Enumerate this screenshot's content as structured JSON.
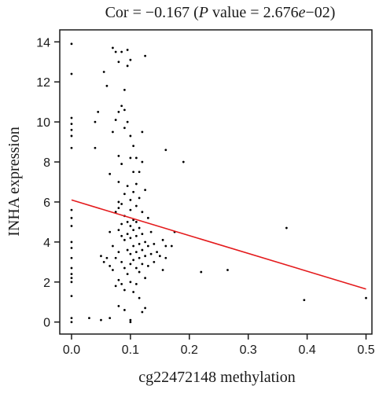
{
  "chart_data": {
    "type": "scatter",
    "title_parts": {
      "prefix": "Cor = −0.167 (",
      "italic1": "P",
      "middle": " value = 2.676",
      "italic2": "e",
      "suffix": "−02)"
    },
    "xlabel": "cg22472148 methylation",
    "ylabel": "INHA expression",
    "xlim": [
      -0.02,
      0.51
    ],
    "ylim": [
      -0.6,
      14.6
    ],
    "xticks": [
      0.0,
      0.1,
      0.2,
      0.3,
      0.4,
      0.5
    ],
    "xtick_labels": [
      "0.0",
      "0.1",
      "0.2",
      "0.3",
      "0.4",
      "0.5"
    ],
    "yticks": [
      0,
      2,
      4,
      6,
      8,
      10,
      12,
      14
    ],
    "ytick_labels": [
      "0",
      "2",
      "4",
      "6",
      "8",
      "10",
      "12",
      "14"
    ],
    "grid": false,
    "point_color": "#000000",
    "line_color": "#e41a1c",
    "regression_line": {
      "x": [
        0.0,
        0.5
      ],
      "y": [
        6.1,
        1.65
      ]
    },
    "points": [
      [
        0.0,
        13.9
      ],
      [
        0.0,
        12.4
      ],
      [
        0.0,
        10.2
      ],
      [
        0.0,
        9.9
      ],
      [
        0.0,
        9.6
      ],
      [
        0.0,
        9.3
      ],
      [
        0.0,
        8.7
      ],
      [
        0.0,
        5.6
      ],
      [
        0.0,
        5.2
      ],
      [
        0.0,
        4.8
      ],
      [
        0.0,
        4.0
      ],
      [
        0.0,
        3.7
      ],
      [
        0.0,
        3.2
      ],
      [
        0.0,
        2.7
      ],
      [
        0.0,
        2.4
      ],
      [
        0.0,
        2.2
      ],
      [
        0.0,
        2.0
      ],
      [
        0.0,
        1.3
      ],
      [
        0.0,
        0.2
      ],
      [
        0.0,
        0.0
      ],
      [
        0.03,
        0.2
      ],
      [
        0.04,
        8.7
      ],
      [
        0.04,
        10.0
      ],
      [
        0.045,
        10.5
      ],
      [
        0.05,
        0.1
      ],
      [
        0.05,
        3.3
      ],
      [
        0.055,
        12.5
      ],
      [
        0.055,
        3.0
      ],
      [
        0.06,
        11.8
      ],
      [
        0.06,
        3.2
      ],
      [
        0.065,
        7.4
      ],
      [
        0.065,
        4.5
      ],
      [
        0.065,
        2.8
      ],
      [
        0.065,
        0.2
      ],
      [
        0.07,
        13.7
      ],
      [
        0.07,
        9.5
      ],
      [
        0.07,
        3.8
      ],
      [
        0.07,
        2.6
      ],
      [
        0.075,
        13.5
      ],
      [
        0.075,
        10.1
      ],
      [
        0.075,
        5.5
      ],
      [
        0.075,
        3.2
      ],
      [
        0.075,
        1.8
      ],
      [
        0.08,
        13.0
      ],
      [
        0.08,
        10.5
      ],
      [
        0.08,
        8.3
      ],
      [
        0.08,
        7.0
      ],
      [
        0.08,
        6.0
      ],
      [
        0.08,
        5.7
      ],
      [
        0.08,
        4.6
      ],
      [
        0.08,
        3.5
      ],
      [
        0.08,
        2.1
      ],
      [
        0.08,
        0.8
      ],
      [
        0.085,
        13.5
      ],
      [
        0.085,
        10.8
      ],
      [
        0.085,
        7.9
      ],
      [
        0.085,
        5.9
      ],
      [
        0.085,
        4.9
      ],
      [
        0.085,
        4.3
      ],
      [
        0.085,
        3.0
      ],
      [
        0.085,
        1.9
      ],
      [
        0.09,
        11.6
      ],
      [
        0.09,
        10.6
      ],
      [
        0.09,
        9.7
      ],
      [
        0.09,
        6.4
      ],
      [
        0.09,
        5.3
      ],
      [
        0.09,
        4.1
      ],
      [
        0.09,
        2.7
      ],
      [
        0.09,
        1.6
      ],
      [
        0.09,
        0.6
      ],
      [
        0.095,
        13.6
      ],
      [
        0.095,
        12.8
      ],
      [
        0.095,
        10.0
      ],
      [
        0.095,
        6.8
      ],
      [
        0.095,
        5.0
      ],
      [
        0.095,
        4.4
      ],
      [
        0.095,
        3.6
      ],
      [
        0.095,
        2.4
      ],
      [
        0.1,
        13.1
      ],
      [
        0.1,
        9.3
      ],
      [
        0.1,
        8.2
      ],
      [
        0.1,
        6.1
      ],
      [
        0.1,
        5.6
      ],
      [
        0.1,
        4.8
      ],
      [
        0.1,
        4.2
      ],
      [
        0.1,
        3.4
      ],
      [
        0.1,
        2.9
      ],
      [
        0.1,
        2.0
      ],
      [
        0.1,
        0.1
      ],
      [
        0.1,
        0.0
      ],
      [
        0.105,
        8.8
      ],
      [
        0.105,
        7.5
      ],
      [
        0.105,
        6.5
      ],
      [
        0.105,
        5.1
      ],
      [
        0.105,
        4.6
      ],
      [
        0.105,
        3.8
      ],
      [
        0.105,
        3.1
      ],
      [
        0.105,
        1.5
      ],
      [
        0.11,
        8.2
      ],
      [
        0.11,
        6.9
      ],
      [
        0.11,
        5.8
      ],
      [
        0.11,
        5.0
      ],
      [
        0.11,
        4.3
      ],
      [
        0.11,
        3.5
      ],
      [
        0.11,
        2.7
      ],
      [
        0.11,
        1.9
      ],
      [
        0.115,
        7.5
      ],
      [
        0.115,
        6.2
      ],
      [
        0.115,
        4.7
      ],
      [
        0.115,
        3.9
      ],
      [
        0.115,
        3.2
      ],
      [
        0.115,
        2.5
      ],
      [
        0.115,
        1.2
      ],
      [
        0.12,
        9.5
      ],
      [
        0.12,
        8.0
      ],
      [
        0.12,
        5.5
      ],
      [
        0.12,
        4.4
      ],
      [
        0.12,
        3.6
      ],
      [
        0.12,
        2.9
      ],
      [
        0.12,
        0.5
      ],
      [
        0.125,
        13.3
      ],
      [
        0.125,
        6.6
      ],
      [
        0.125,
        4.0
      ],
      [
        0.125,
        3.3
      ],
      [
        0.125,
        2.2
      ],
      [
        0.125,
        0.7
      ],
      [
        0.13,
        5.2
      ],
      [
        0.13,
        3.8
      ],
      [
        0.13,
        2.8
      ],
      [
        0.135,
        4.5
      ],
      [
        0.135,
        3.4
      ],
      [
        0.14,
        3.9
      ],
      [
        0.14,
        3.0
      ],
      [
        0.145,
        3.5
      ],
      [
        0.15,
        3.3
      ],
      [
        0.155,
        4.1
      ],
      [
        0.155,
        2.6
      ],
      [
        0.16,
        8.6
      ],
      [
        0.16,
        3.8
      ],
      [
        0.16,
        3.2
      ],
      [
        0.17,
        3.8
      ],
      [
        0.175,
        4.5
      ],
      [
        0.19,
        8.0
      ],
      [
        0.22,
        2.5
      ],
      [
        0.265,
        2.6
      ],
      [
        0.365,
        4.7
      ],
      [
        0.395,
        1.1
      ],
      [
        0.5,
        1.2
      ]
    ]
  }
}
